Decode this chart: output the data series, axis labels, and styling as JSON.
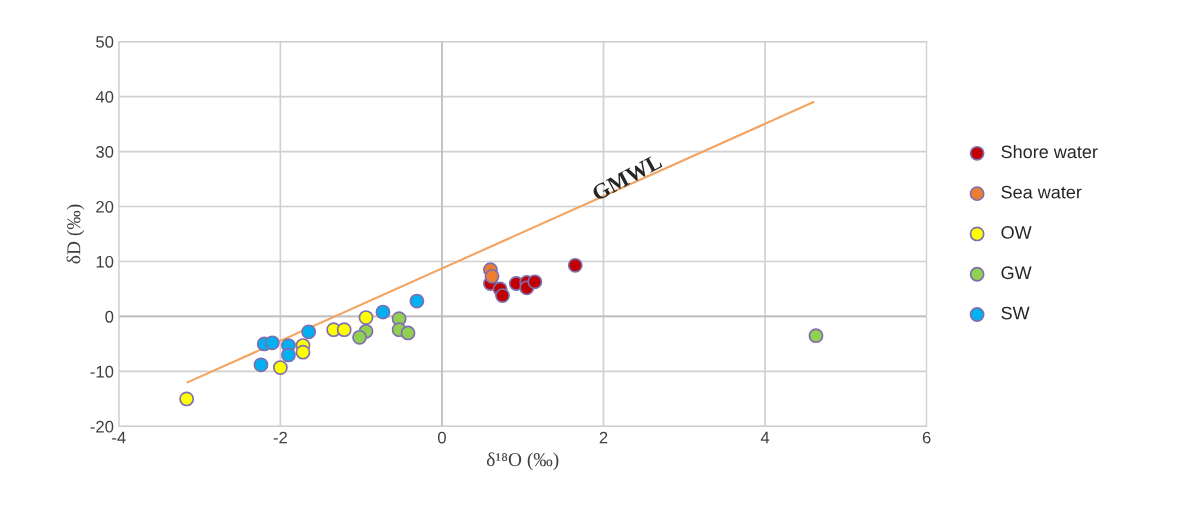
{
  "chart_data": {
    "type": "scatter",
    "xlabel": "δ¹⁸O (‰)",
    "ylabel": "δD (‰)",
    "xlim": [
      -4,
      6
    ],
    "xticks": [
      -4,
      -2,
      0,
      2,
      4,
      6
    ],
    "ylim": [
      -20,
      50
    ],
    "yticks": [
      -20,
      -10,
      0,
      10,
      20,
      30,
      40,
      50
    ],
    "grid": true,
    "legend": "right",
    "marker": "circle",
    "annotations": [
      {
        "text": "GMWL",
        "x": 2.3,
        "y": 25
      }
    ],
    "series": [
      {
        "name": "Shore water",
        "color": "#c00000",
        "x": [
          0.6,
          0.72,
          0.75,
          0.92,
          1.05,
          1.05,
          1.15,
          1.65
        ],
        "values": [
          6,
          5,
          3.8,
          6,
          6.2,
          5.2,
          6.3,
          9.3
        ]
      },
      {
        "name": "Sea water",
        "color": "#ed7d31",
        "x": [
          0.6,
          0.62
        ],
        "values": [
          8.5,
          7.3
        ]
      },
      {
        "name": "OW",
        "color": "#ffff00",
        "x": [
          -3.16,
          -2.0,
          -1.72,
          -1.72,
          -1.34,
          -1.21,
          -0.94
        ],
        "values": [
          -15,
          -9.3,
          -5.3,
          -6.5,
          -2.4,
          -2.4,
          -0.2
        ]
      },
      {
        "name": "GW",
        "color": "#92d050",
        "x": [
          -0.53,
          -0.53,
          -0.42,
          -0.94,
          -1.02,
          4.63
        ],
        "values": [
          -0.4,
          -2.4,
          -3,
          -2.7,
          -3.8,
          -3.5
        ]
      },
      {
        "name": "SW",
        "color": "#00b0f0",
        "x": [
          -0.31,
          -0.73,
          -1.65,
          -2.2,
          -2.1,
          -1.9,
          -1.9,
          -2.24
        ],
        "values": [
          2.8,
          0.8,
          -2.8,
          -5,
          -4.8,
          -5.3,
          -7,
          -8.8
        ]
      },
      {
        "type": "line",
        "marker": "none",
        "color": "#f4a460",
        "x": [
          -3.15,
          4.6
        ],
        "values": [
          -12,
          39
        ]
      }
    ]
  }
}
